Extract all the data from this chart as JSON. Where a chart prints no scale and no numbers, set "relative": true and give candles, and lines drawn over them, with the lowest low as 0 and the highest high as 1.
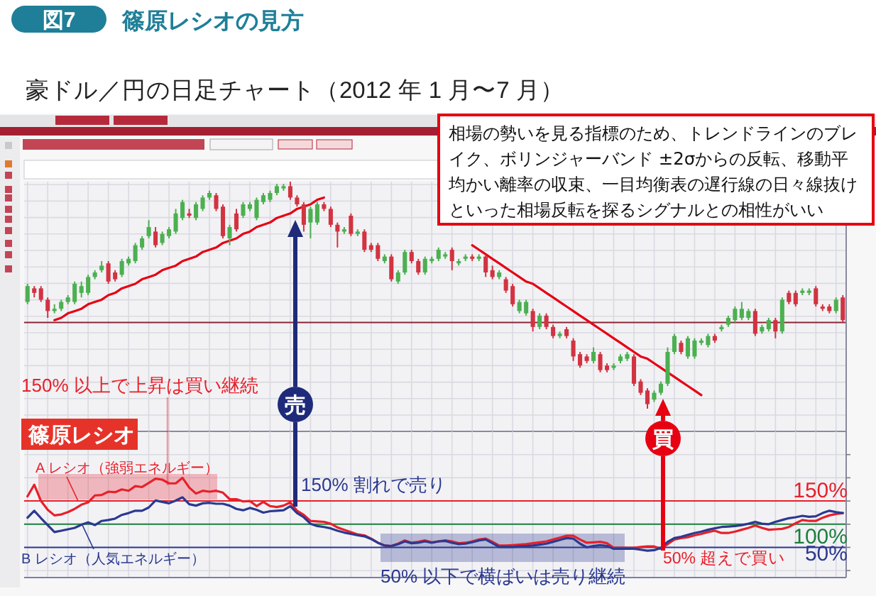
{
  "chart_data": [
    {
      "type": "candlestick",
      "title": "篠原レシオの見方",
      "subtitle": "豪ドル／円の日足チャート（2012 年 1 月〜7 月）",
      "annotations": [
        "図7",
        "相場の勢いを見る指標のため、トレンドラインのブレイク、ボリンジャーバンド ±2σからの反転、移動平均かい離率の収束、一目均衡表の遅行線の日々線抜けといった相場反転を探るシグナルとの相性がいい",
        "売",
        "買"
      ],
      "relative": true,
      "grid": true,
      "categories": [
        null,
        null,
        null,
        null,
        null,
        null,
        null,
        null,
        null,
        null,
        null,
        null,
        null,
        null,
        null,
        null,
        null,
        null,
        null,
        null,
        null,
        null,
        null,
        null,
        null,
        null,
        null,
        null,
        null,
        null,
        null,
        null,
        null,
        null,
        null,
        null,
        null,
        null,
        null,
        null,
        null,
        null,
        null,
        null,
        null,
        null,
        null,
        null,
        null,
        null,
        null,
        null,
        null,
        null,
        null,
        null,
        null,
        null,
        null,
        null,
        null,
        null,
        null,
        null,
        null,
        null,
        null,
        null,
        null,
        null,
        null,
        null,
        null,
        null,
        null,
        null,
        null,
        null,
        null,
        null,
        null,
        null,
        null,
        null,
        null,
        null,
        null,
        null,
        null,
        null,
        null,
        null,
        null,
        null,
        null,
        null,
        null,
        null,
        null,
        null,
        null,
        null,
        null,
        null,
        null,
        null,
        null,
        null,
        null,
        null,
        null,
        null,
        null,
        null,
        null,
        null,
        null,
        null,
        null,
        null,
        null,
        null
      ],
      "ohlc": [
        [
          0.47,
          0.55,
          0.46,
          0.54
        ],
        [
          0.53,
          0.54,
          0.49,
          0.51
        ],
        [
          0.53,
          0.54,
          0.47,
          0.48
        ],
        [
          0.48,
          0.49,
          0.4,
          0.43
        ],
        [
          0.43,
          0.46,
          0.42,
          0.44
        ],
        [
          0.44,
          0.48,
          0.43,
          0.47
        ],
        [
          0.47,
          0.5,
          0.46,
          0.49
        ],
        [
          0.47,
          0.56,
          0.46,
          0.55
        ],
        [
          0.51,
          0.56,
          0.49,
          0.54
        ],
        [
          0.51,
          0.59,
          0.5,
          0.58
        ],
        [
          0.58,
          0.61,
          0.57,
          0.6
        ],
        [
          0.61,
          0.65,
          0.6,
          0.63
        ],
        [
          0.64,
          0.65,
          0.55,
          0.56
        ],
        [
          0.6,
          0.61,
          0.56,
          0.57
        ],
        [
          0.59,
          0.66,
          0.58,
          0.65
        ],
        [
          0.64,
          0.67,
          0.63,
          0.66
        ],
        [
          0.65,
          0.73,
          0.64,
          0.72
        ],
        [
          0.71,
          0.76,
          0.7,
          0.75
        ],
        [
          0.76,
          0.83,
          0.75,
          0.8
        ],
        [
          0.78,
          0.8,
          0.71,
          0.72
        ],
        [
          0.73,
          0.78,
          0.72,
          0.77
        ],
        [
          0.76,
          0.8,
          0.75,
          0.79
        ],
        [
          0.78,
          0.88,
          0.77,
          0.86
        ],
        [
          0.84,
          0.92,
          0.83,
          0.91
        ],
        [
          0.86,
          0.88,
          0.84,
          0.85
        ],
        [
          0.84,
          0.91,
          0.83,
          0.9
        ],
        [
          0.88,
          0.94,
          0.87,
          0.93
        ],
        [
          0.93,
          0.96,
          0.92,
          0.95
        ],
        [
          0.94,
          0.95,
          0.87,
          0.88
        ],
        [
          0.89,
          0.9,
          0.75,
          0.76
        ],
        [
          0.75,
          0.81,
          0.72,
          0.8
        ],
        [
          0.86,
          0.88,
          0.78,
          0.79
        ],
        [
          0.85,
          0.91,
          0.84,
          0.9
        ],
        [
          0.88,
          0.91,
          0.87,
          0.9
        ],
        [
          0.84,
          0.93,
          0.83,
          0.92
        ],
        [
          0.91,
          0.95,
          0.9,
          0.94
        ],
        [
          0.92,
          0.96,
          0.91,
          0.95
        ],
        [
          0.95,
          0.99,
          0.94,
          0.98
        ],
        [
          0.97,
          0.99,
          0.96,
          0.98
        ],
        [
          0.98,
          1.0,
          0.92,
          0.93
        ],
        [
          0.93,
          0.94,
          0.89,
          0.9
        ],
        [
          0.9,
          0.91,
          0.78,
          0.81
        ],
        [
          0.82,
          0.89,
          0.75,
          0.88
        ],
        [
          0.82,
          0.91,
          0.81,
          0.9
        ],
        [
          0.9,
          0.91,
          0.87,
          0.88
        ],
        [
          0.88,
          0.89,
          0.8,
          0.81
        ],
        [
          0.81,
          0.82,
          0.71,
          0.78
        ],
        [
          0.78,
          0.8,
          0.77,
          0.79
        ],
        [
          0.85,
          0.86,
          0.76,
          0.77
        ],
        [
          0.77,
          0.79,
          0.76,
          0.78
        ],
        [
          0.78,
          0.79,
          0.69,
          0.7
        ],
        [
          0.72,
          0.73,
          0.69,
          0.7
        ],
        [
          0.72,
          0.73,
          0.65,
          0.66
        ],
        [
          0.65,
          0.68,
          0.64,
          0.67
        ],
        [
          0.67,
          0.68,
          0.56,
          0.57
        ],
        [
          0.56,
          0.61,
          0.55,
          0.6
        ],
        [
          0.6,
          0.7,
          0.59,
          0.69
        ],
        [
          0.69,
          0.7,
          0.64,
          0.65
        ],
        [
          0.65,
          0.66,
          0.59,
          0.6
        ],
        [
          0.6,
          0.67,
          0.59,
          0.66
        ],
        [
          0.65,
          0.67,
          0.64,
          0.66
        ],
        [
          0.66,
          0.71,
          0.65,
          0.7
        ],
        [
          0.67,
          0.69,
          0.66,
          0.68
        ],
        [
          0.7,
          0.71,
          0.61,
          0.65
        ],
        [
          0.64,
          0.66,
          0.63,
          0.65
        ],
        [
          0.66,
          0.68,
          0.65,
          0.67
        ],
        [
          0.67,
          0.68,
          0.65,
          0.66
        ],
        [
          0.66,
          0.68,
          0.65,
          0.67
        ],
        [
          0.67,
          0.68,
          0.58,
          0.6
        ],
        [
          0.61,
          0.63,
          0.57,
          0.58
        ],
        [
          0.58,
          0.61,
          0.57,
          0.6
        ],
        [
          0.57,
          0.58,
          0.51,
          0.52
        ],
        [
          0.54,
          0.55,
          0.45,
          0.46
        ],
        [
          0.43,
          0.48,
          0.42,
          0.47
        ],
        [
          0.42,
          0.48,
          0.41,
          0.47
        ],
        [
          0.43,
          0.44,
          0.34,
          0.36
        ],
        [
          0.36,
          0.42,
          0.35,
          0.41
        ],
        [
          0.41,
          0.42,
          0.35,
          0.36
        ],
        [
          0.36,
          0.37,
          0.31,
          0.32
        ],
        [
          0.32,
          0.34,
          0.31,
          0.33
        ],
        [
          0.35,
          0.36,
          0.31,
          0.32
        ],
        [
          0.3,
          0.31,
          0.21,
          0.23
        ],
        [
          0.24,
          0.25,
          0.18,
          0.19
        ],
        [
          0.23,
          0.24,
          0.2,
          0.21
        ],
        [
          0.21,
          0.27,
          0.2,
          0.25
        ],
        [
          0.24,
          0.25,
          0.16,
          0.17
        ],
        [
          0.19,
          0.2,
          0.16,
          0.17
        ],
        [
          0.18,
          0.2,
          0.17,
          0.19
        ],
        [
          0.21,
          0.24,
          0.2,
          0.23
        ],
        [
          0.22,
          0.25,
          0.21,
          0.24
        ],
        [
          0.23,
          0.24,
          0.1,
          0.11
        ],
        [
          0.12,
          0.13,
          0.06,
          0.07
        ],
        [
          0.08,
          0.09,
          0.0,
          0.02
        ],
        [
          0.04,
          0.08,
          0.03,
          0.07
        ],
        [
          0.07,
          0.12,
          0.06,
          0.11
        ],
        [
          0.11,
          0.27,
          0.1,
          0.25
        ],
        [
          0.25,
          0.33,
          0.24,
          0.32
        ],
        [
          0.29,
          0.3,
          0.24,
          0.25
        ],
        [
          0.23,
          0.32,
          0.22,
          0.31
        ],
        [
          0.23,
          0.31,
          0.22,
          0.3
        ],
        [
          0.29,
          0.31,
          0.28,
          0.3
        ],
        [
          0.28,
          0.33,
          0.27,
          0.32
        ],
        [
          0.32,
          0.33,
          0.29,
          0.3
        ],
        [
          0.35,
          0.37,
          0.34,
          0.36
        ],
        [
          0.37,
          0.41,
          0.36,
          0.4
        ],
        [
          0.39,
          0.45,
          0.38,
          0.44
        ],
        [
          0.4,
          0.47,
          0.39,
          0.44
        ],
        [
          0.4,
          0.44,
          0.39,
          0.43
        ],
        [
          0.43,
          0.44,
          0.32,
          0.33
        ],
        [
          0.34,
          0.37,
          0.33,
          0.36
        ],
        [
          0.35,
          0.4,
          0.34,
          0.39
        ],
        [
          0.39,
          0.4,
          0.31,
          0.34
        ],
        [
          0.34,
          0.49,
          0.33,
          0.48
        ],
        [
          0.51,
          0.52,
          0.46,
          0.47
        ],
        [
          0.51,
          0.52,
          0.45,
          0.46
        ],
        [
          0.51,
          0.53,
          0.5,
          0.52
        ],
        [
          0.51,
          0.53,
          0.5,
          0.52
        ],
        [
          0.53,
          0.54,
          0.45,
          0.46
        ],
        [
          0.45,
          0.46,
          0.43,
          0.44
        ],
        [
          0.45,
          0.46,
          0.42,
          0.43
        ],
        [
          0.43,
          0.49,
          0.42,
          0.48
        ],
        [
          0.49,
          0.5,
          0.38,
          0.39
        ]
      ],
      "series": [
        {
          "type": "line",
          "color": "#e60012",
          "values": [
            null,
            null,
            null,
            null,
            0.39,
            0.4,
            0.42,
            0.43,
            0.44,
            0.46,
            0.47,
            0.48,
            0.5,
            0.51,
            0.53,
            0.54,
            0.55,
            0.57,
            0.58,
            0.59,
            0.61,
            0.62,
            0.63,
            0.65,
            0.66,
            0.67,
            0.69,
            0.7,
            0.71,
            0.73,
            0.74,
            0.75,
            0.77,
            0.78,
            0.8,
            0.81,
            0.82,
            0.84,
            0.85,
            0.86,
            0.88,
            0.89,
            0.9,
            0.92,
            0.93,
            null,
            null,
            null,
            null,
            null,
            null,
            null,
            null,
            null,
            null,
            null,
            null,
            null,
            null,
            null,
            null,
            null,
            null,
            null,
            null,
            null,
            null,
            null,
            null,
            null,
            null,
            null,
            null,
            null,
            null,
            null,
            null,
            null,
            null,
            null,
            null,
            null,
            null,
            null,
            null,
            null,
            null,
            null,
            null,
            null,
            null,
            null,
            null,
            null,
            null,
            null,
            null,
            null,
            null,
            null,
            null,
            null,
            null,
            null,
            null,
            null,
            null,
            null,
            null,
            null,
            null,
            null,
            null,
            null,
            null,
            null,
            null,
            null,
            null,
            null,
            null,
            null
          ]
        },
        {
          "type": "line",
          "color": "#e60012",
          "values": [
            null,
            null,
            null,
            null,
            null,
            null,
            null,
            null,
            null,
            null,
            null,
            null,
            null,
            null,
            null,
            null,
            null,
            null,
            null,
            null,
            null,
            null,
            null,
            null,
            null,
            null,
            null,
            null,
            null,
            null,
            null,
            null,
            null,
            null,
            null,
            null,
            null,
            null,
            null,
            null,
            null,
            null,
            null,
            null,
            null,
            null,
            null,
            null,
            null,
            null,
            null,
            null,
            null,
            null,
            null,
            null,
            null,
            null,
            null,
            null,
            null,
            null,
            null,
            null,
            null,
            null,
            0.72,
            0.7,
            0.68,
            0.66,
            0.64,
            0.62,
            0.6,
            0.58,
            0.56,
            0.55,
            0.53,
            0.51,
            0.49,
            0.47,
            0.45,
            0.43,
            0.41,
            0.39,
            0.37,
            0.35,
            0.33,
            0.31,
            0.29,
            0.27,
            0.25,
            0.23,
            0.22,
            0.2,
            0.18,
            0.16,
            0.14,
            0.12,
            0.1,
            0.08,
            0.06,
            null,
            null,
            null,
            null,
            null,
            null,
            null,
            null,
            null,
            null,
            null,
            null,
            null,
            null,
            null,
            null,
            null,
            null,
            null,
            null,
            null
          ]
        }
      ],
      "ref_lines": [
        {
          "axis": "y",
          "value": 0.38,
          "color": "#8b2535"
        }
      ]
    },
    {
      "type": "line",
      "title": "篠原レシオ",
      "annotations": [
        "150% 割れで売り",
        "50% 超えで買い",
        "150% 以上で上昇は買い継続",
        "50% 以下で横ばいは売り継続"
      ],
      "grid": true,
      "categories": [
        null,
        null,
        null,
        null,
        null,
        null,
        null,
        null,
        null,
        null,
        null,
        null,
        null,
        null,
        null,
        null,
        null,
        null,
        null,
        null,
        null,
        null,
        null,
        null,
        null,
        null,
        null,
        null,
        null,
        null,
        null,
        null,
        null,
        null,
        null,
        null,
        null,
        null,
        null,
        null,
        null,
        null,
        null,
        null,
        null,
        null,
        null,
        null,
        null,
        null,
        null,
        null,
        null,
        null,
        null,
        null,
        null,
        null,
        null,
        null,
        null,
        null,
        null,
        null,
        null,
        null,
        null,
        null,
        null,
        null,
        null,
        null,
        null,
        null,
        null,
        null,
        null,
        null,
        null,
        null,
        null,
        null,
        null,
        null,
        null,
        null,
        null,
        null,
        null,
        null,
        null,
        null,
        null,
        null,
        null,
        null,
        null,
        null,
        null,
        null,
        null,
        null,
        null,
        null,
        null,
        null,
        null,
        null,
        null,
        null,
        null,
        null,
        null,
        null,
        null,
        null,
        null,
        null,
        null,
        null,
        null,
        null
      ],
      "ylim": [
        -15,
        300
      ],
      "yticks": [
        {
          "value": 0,
          "label": null
        },
        {
          "value": 50,
          "label": null
        },
        {
          "value": 100,
          "label": null
        },
        {
          "value": 150,
          "label": null
        },
        {
          "value": 200,
          "label": null
        },
        {
          "value": 250,
          "label": null
        }
      ],
      "series": [
        {
          "name": "A レシオ（強弱エネルギー）",
          "color": "#e8202a",
          "values": [
            160,
            185,
            150,
            131,
            119,
            121,
            126,
            133,
            142,
            147,
            162,
            163,
            170,
            169,
            175,
            172,
            182,
            180,
            189,
            198,
            196,
            188,
            188,
            200,
            179,
            166,
            172,
            170,
            172,
            168,
            154,
            154,
            149,
            150,
            139,
            148,
            139,
            137,
            140,
            147,
            129,
            120,
            107,
            106,
            105,
            101,
            93,
            88,
            83,
            78,
            76,
            69,
            60,
            54,
            53,
            58,
            65,
            60,
            62,
            65,
            61,
            63,
            65,
            63,
            59,
            60,
            63,
            67,
            69,
            62,
            54,
            54,
            55,
            56,
            57,
            59,
            61,
            63,
            67,
            71,
            75,
            75,
            67,
            60,
            61,
            62,
            59,
            49,
            49,
            49,
            49,
            51,
            52,
            52,
            47,
            57,
            67,
            70,
            72,
            76,
            79,
            83,
            86,
            81,
            81,
            84,
            88,
            92,
            97,
            92,
            88,
            89,
            90,
            94,
            102,
            109,
            107,
            107,
            114,
            119,
            122,
            124
          ]
        },
        {
          "name": "B レシオ（人気エネルギー）",
          "color": "#2b3990",
          "values": [
            114,
            129,
            113,
            98,
            83,
            86,
            89,
            92,
            99,
            104,
            98,
            107,
            109,
            112,
            120,
            124,
            129,
            129,
            136,
            151,
            148,
            145,
            151,
            158,
            143,
            140,
            145,
            146,
            144,
            144,
            140,
            133,
            130,
            135,
            131,
            125,
            128,
            129,
            130,
            139,
            124,
            115,
            101,
            96,
            94,
            91,
            86,
            82,
            79,
            76,
            74,
            68,
            60,
            54,
            53,
            57,
            63,
            59,
            60,
            63,
            60,
            63,
            64,
            60,
            57,
            58,
            61,
            65,
            67,
            59,
            51,
            51,
            51,
            52,
            53,
            54,
            56,
            58,
            62,
            66,
            70,
            69,
            58,
            50,
            53,
            55,
            53,
            47,
            47,
            47,
            47,
            45,
            43,
            44,
            49,
            62,
            70,
            73,
            77,
            81,
            84,
            88,
            91,
            94,
            95,
            96,
            98,
            101,
            105,
            101,
            100,
            105,
            109,
            113,
            115,
            118,
            116,
            117,
            124,
            129,
            126,
            124
          ]
        }
      ],
      "ref_lines": [
        {
          "axis": "y",
          "value": 150,
          "label": "150%",
          "color": "#e8202a"
        },
        {
          "axis": "y",
          "value": 100,
          "label": "100%",
          "color": "#1b7f3c"
        },
        {
          "axis": "y",
          "value": 50,
          "label": "50%",
          "color": "#2b3990"
        }
      ]
    }
  ]
}
